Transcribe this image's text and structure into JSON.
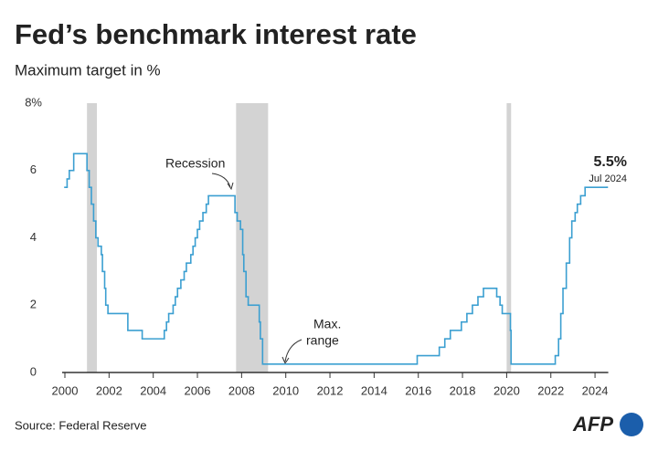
{
  "chart_data": {
    "type": "step",
    "title": "Fed’s benchmark interest rate",
    "subtitle": "Maximum target in %",
    "source": "Source: Federal Reserve",
    "logo": "AFP",
    "color": "#3b9fd1",
    "recession_color": "#d3d3d3",
    "recessions": [
      [
        2001.0,
        2001.45
      ],
      [
        2007.75,
        2009.2
      ],
      [
        2020.0,
        2020.2
      ]
    ],
    "annotations": [
      {
        "text": "Recession"
      },
      {
        "text": "Max."
      },
      {
        "text": "range"
      },
      {
        "text": "5.5%"
      },
      {
        "text": "Jul 2024"
      }
    ],
    "x": [
      2000.0,
      2000.1,
      2000.2,
      2000.4,
      2001.0,
      2001.1,
      2001.2,
      2001.3,
      2001.4,
      2001.5,
      2001.65,
      2001.7,
      2001.8,
      2001.85,
      2001.95,
      2002.85,
      2003.5,
      2004.5,
      2004.6,
      2004.7,
      2004.9,
      2005.0,
      2005.1,
      2005.25,
      2005.4,
      2005.5,
      2005.7,
      2005.8,
      2005.9,
      2006.0,
      2006.1,
      2006.25,
      2006.4,
      2006.5,
      2007.7,
      2007.8,
      2007.95,
      2008.05,
      2008.1,
      2008.2,
      2008.3,
      2008.8,
      2008.85,
      2008.95,
      2015.95,
      2016.95,
      2017.2,
      2017.45,
      2017.95,
      2018.2,
      2018.45,
      2018.7,
      2018.95,
      2019.55,
      2019.7,
      2019.8,
      2020.17,
      2020.2,
      2022.2,
      2022.35,
      2022.45,
      2022.55,
      2022.7,
      2022.85,
      2022.95,
      2023.1,
      2023.2,
      2023.35,
      2023.55,
      2024.55
    ],
    "values": [
      5.5,
      5.75,
      6.0,
      6.5,
      6.0,
      5.5,
      5.0,
      4.5,
      4.0,
      3.75,
      3.5,
      3.0,
      2.5,
      2.0,
      1.75,
      1.25,
      1.0,
      1.25,
      1.5,
      1.75,
      2.0,
      2.25,
      2.5,
      2.75,
      3.0,
      3.25,
      3.5,
      3.75,
      4.0,
      4.25,
      4.5,
      4.75,
      5.0,
      5.25,
      4.75,
      4.5,
      4.25,
      3.5,
      3.0,
      2.25,
      2.0,
      1.5,
      1.0,
      0.25,
      0.5,
      0.75,
      1.0,
      1.25,
      1.5,
      1.75,
      2.0,
      2.25,
      2.5,
      2.25,
      2.0,
      1.75,
      1.25,
      0.25,
      0.5,
      1.0,
      1.75,
      2.5,
      3.25,
      4.0,
      4.5,
      4.75,
      5.0,
      5.25,
      5.5,
      5.5
    ],
    "xlim": [
      2000,
      2024.6
    ],
    "xticks": [
      2000,
      2002,
      2004,
      2006,
      2008,
      2010,
      2012,
      2014,
      2016,
      2018,
      2020,
      2022,
      2024
    ],
    "ylim": [
      0,
      8
    ],
    "yticks": [
      0,
      2,
      4,
      6,
      {
        "value": 8,
        "label": "8%"
      }
    ],
    "grid": false
  }
}
